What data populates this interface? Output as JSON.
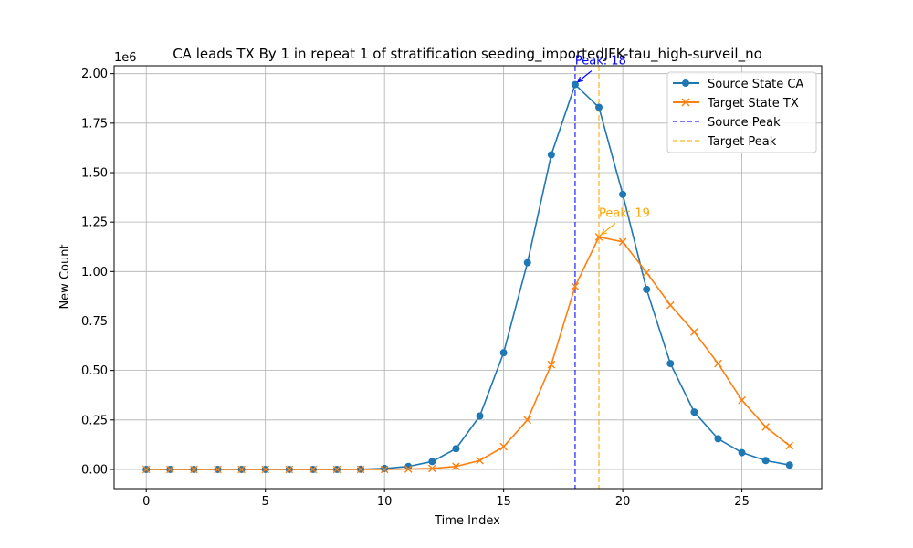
{
  "chart_data": {
    "type": "line",
    "title": "CA leads TX By 1 in repeat 1 of stratification seeding_importedJFK-tau_high-surveil_no",
    "xlabel": "Time Index",
    "ylabel": "New Count",
    "y_offset_text": "1e6",
    "xlim": [
      -1.35,
      28.35
    ],
    "ylim": [
      -0.097,
      2.04
    ],
    "x_ticks": [
      0,
      5,
      10,
      15,
      20,
      25
    ],
    "y_ticks": [
      0.0,
      0.25,
      0.5,
      0.75,
      1.0,
      1.25,
      1.5,
      1.75,
      2.0
    ],
    "x_tick_labels": [
      "0",
      "5",
      "10",
      "15",
      "20",
      "25"
    ],
    "y_tick_labels": [
      "0.00",
      "0.25",
      "0.50",
      "0.75",
      "1.00",
      "1.25",
      "1.50",
      "1.75",
      "2.00"
    ],
    "grid": true,
    "legend_position": "top-right",
    "x": [
      0,
      1,
      2,
      3,
      4,
      5,
      6,
      7,
      8,
      9,
      10,
      11,
      12,
      13,
      14,
      15,
      16,
      17,
      18,
      19,
      20,
      21,
      22,
      23,
      24,
      25,
      26,
      27
    ],
    "series": [
      {
        "name": "Source State CA",
        "color": "#1f77b4",
        "marker": "circle",
        "values": [
          0,
          0,
          0,
          0,
          0,
          0,
          0,
          0,
          0,
          0.001,
          0.005,
          0.015,
          0.04,
          0.105,
          0.27,
          0.59,
          1.045,
          1.59,
          1.945,
          1.83,
          1.39,
          0.91,
          0.535,
          0.29,
          0.155,
          0.085,
          0.045,
          0.022
        ]
      },
      {
        "name": "Target State TX",
        "color": "#ff7f0e",
        "marker": "x",
        "values": [
          0,
          0,
          0,
          0,
          0,
          0,
          0,
          0,
          0,
          0,
          0,
          0.002,
          0.005,
          0.015,
          0.045,
          0.115,
          0.25,
          0.53,
          0.925,
          1.175,
          1.15,
          0.995,
          0.83,
          0.695,
          0.535,
          0.35,
          0.215,
          0.12
        ]
      }
    ],
    "vlines": [
      {
        "name": "Source Peak",
        "x": 18,
        "color": "#0000ff"
      },
      {
        "name": "Target Peak",
        "x": 19,
        "color": "#ffa500"
      }
    ],
    "annotations": [
      {
        "text": "Peak: 18",
        "x": 18,
        "y": 1.945,
        "color": "#0000ff"
      },
      {
        "text": "Peak: 19",
        "x": 19,
        "y": 1.175,
        "color": "#ffa500"
      }
    ]
  }
}
